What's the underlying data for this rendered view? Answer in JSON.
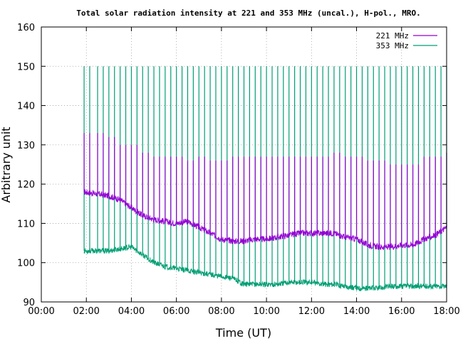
{
  "chart_data": {
    "type": "line",
    "title": "Total solar radiation intensity at 221 and 353 MHz (uncal.), H-pol., MRO.",
    "xlabel": "Time (UT)",
    "ylabel": "Arbitrary unit",
    "xlim": [
      0,
      18
    ],
    "ylim": [
      90,
      160
    ],
    "x_ticks": [
      0,
      2,
      4,
      6,
      8,
      10,
      12,
      14,
      16,
      18
    ],
    "x_tick_labels": [
      "00:00",
      "02:00",
      "04:00",
      "06:00",
      "08:00",
      "10:00",
      "12:00",
      "14:00",
      "16:00",
      "18:00"
    ],
    "y_ticks": [
      90,
      100,
      110,
      120,
      130,
      140,
      150,
      160
    ],
    "y_tick_labels": [
      "90",
      "100",
      "110",
      "120",
      "130",
      "140",
      "150",
      "160"
    ],
    "grid": true,
    "legend_position": "top-right",
    "series": [
      {
        "name": "221 MHz",
        "color": "#9400d3",
        "x": [
          1.9,
          2.5,
          3.0,
          3.5,
          4.0,
          4.5,
          5.0,
          5.5,
          6.0,
          6.5,
          7.0,
          7.5,
          8.0,
          8.5,
          9.0,
          9.5,
          10.0,
          10.5,
          11.0,
          11.5,
          12.0,
          12.5,
          13.0,
          13.5,
          14.0,
          14.5,
          15.0,
          15.5,
          16.0,
          16.5,
          17.0,
          17.5,
          18.0
        ],
        "y": [
          118,
          117.5,
          117,
          116,
          114,
          112,
          111,
          110.5,
          110,
          110.5,
          109,
          107.5,
          106,
          105.5,
          105.5,
          106,
          106,
          106.5,
          107,
          107.5,
          107.5,
          107.5,
          107.5,
          106.5,
          106,
          104.5,
          104,
          104,
          104.5,
          104.5,
          106,
          107,
          109
        ],
        "spike_top": [
          133,
          133,
          132,
          130,
          130,
          128,
          127,
          127,
          127,
          126,
          127,
          126,
          126,
          127,
          127,
          127,
          127,
          127,
          127,
          127,
          127,
          127,
          128,
          127,
          127,
          126,
          126,
          125,
          125,
          125,
          127,
          127,
          128
        ]
      },
      {
        "name": "353 MHz",
        "color": "#009e73",
        "x": [
          1.9,
          2.5,
          3.0,
          3.5,
          4.0,
          4.5,
          5.0,
          5.5,
          6.0,
          6.5,
          7.0,
          7.5,
          8.0,
          8.5,
          9.0,
          9.5,
          10.0,
          10.5,
          11.0,
          11.5,
          12.0,
          12.5,
          13.0,
          13.5,
          14.0,
          14.5,
          15.0,
          15.5,
          16.0,
          16.5,
          17.0,
          17.5,
          18.0
        ],
        "y": [
          103,
          103,
          103,
          103.5,
          104,
          102,
          100,
          99,
          98.5,
          98,
          97.5,
          97,
          96.5,
          96,
          94.5,
          94.5,
          94.5,
          94.5,
          95,
          95,
          95,
          94.5,
          94.5,
          94,
          93.5,
          93.5,
          93.5,
          94,
          94,
          94,
          94,
          94,
          94
        ],
        "spike_top": 150
      }
    ]
  }
}
